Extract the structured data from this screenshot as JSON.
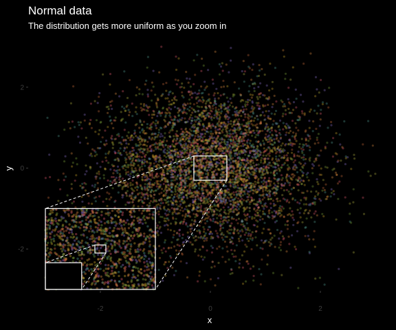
{
  "chart_data": {
    "type": "scatter",
    "title": "Normal data",
    "subtitle": "The distribution gets more uniform as you zoom in",
    "xlabel": "x",
    "ylabel": "y",
    "xlim": [
      -3.0,
      3.0
    ],
    "ylim": [
      -3.0,
      3.0
    ],
    "x_ticks": [
      -2,
      0,
      2
    ],
    "y_ticks": [
      -2,
      0,
      2
    ],
    "x_tick_labels": [
      "-2",
      "0",
      "2"
    ],
    "y_tick_labels": [
      "-2",
      "0",
      "2"
    ],
    "grid": false,
    "legend": "none",
    "point_distribution": "bivariate standard normal, many semi-transparent colored points",
    "point_colors": [
      "#e05a6e",
      "#c9a227",
      "#7aa23a",
      "#8a6fc9",
      "#d98a3f",
      "#4f9a8f",
      "#c96a3a",
      "#b0b040"
    ],
    "zoom": {
      "region": {
        "x": [
          -0.3,
          0.3
        ],
        "y": [
          -0.3,
          0.3
        ]
      },
      "inset": {
        "x": [
          -3.0,
          -1.0
        ],
        "y": [
          -3.0,
          -1.0
        ]
      },
      "nested_region": {
        "x": [
          -2.1,
          -1.9
        ],
        "y": [
          -2.1,
          -1.9
        ]
      },
      "nested_inset": {
        "x": [
          -3.0,
          -2.34
        ],
        "y": [
          -3.0,
          -2.34
        ]
      }
    },
    "colors": {
      "background": "#000000",
      "text": "#ffffff",
      "tick_text": "#3f3f3f",
      "zoom_frame": "#ffffff"
    }
  }
}
